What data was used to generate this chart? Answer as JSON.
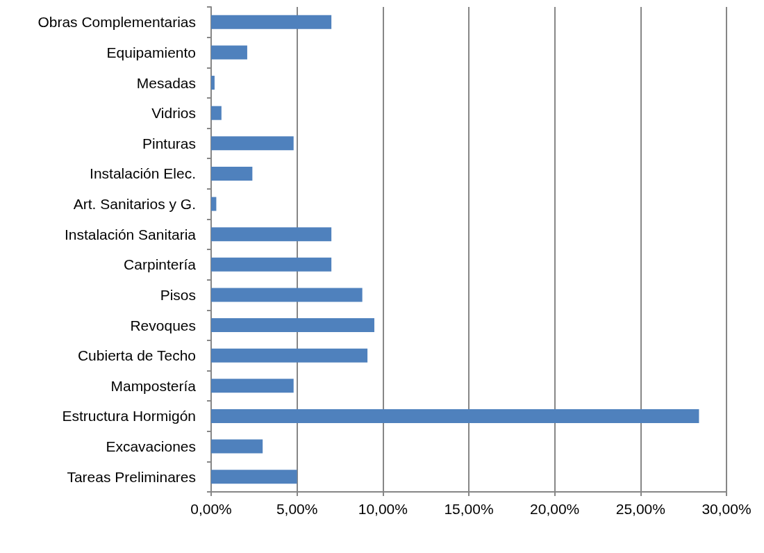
{
  "chart_data": {
    "type": "bar",
    "orientation": "horizontal",
    "categories": [
      "Obras Complementarias",
      "Equipamiento",
      "Mesadas",
      "Vidrios",
      "Pinturas",
      "Instalación Elec.",
      "Art. Sanitarios y G.",
      "Instalación Sanitaria",
      "Carpintería",
      "Pisos",
      "Revoques",
      "Cubierta de Techo",
      "Mampostería",
      "Estructura Hormigón",
      "Excavaciones",
      "Tareas Preliminares"
    ],
    "values": [
      7.0,
      2.1,
      0.2,
      0.6,
      4.8,
      2.4,
      0.3,
      7.0,
      7.0,
      8.8,
      9.5,
      9.1,
      4.8,
      28.4,
      3.0,
      5.0
    ],
    "color": "#4f81bd",
    "xlim": [
      0,
      30
    ],
    "xticks": [
      {
        "value": 0,
        "label": "0,00%"
      },
      {
        "value": 5,
        "label": "5,00%"
      },
      {
        "value": 10,
        "label": "10,00%"
      },
      {
        "value": 15,
        "label": "15,00%"
      },
      {
        "value": 20,
        "label": "20,00%"
      },
      {
        "value": 25,
        "label": "25,00%"
      },
      {
        "value": 30,
        "label": "30,00%"
      }
    ],
    "grid": "x"
  }
}
